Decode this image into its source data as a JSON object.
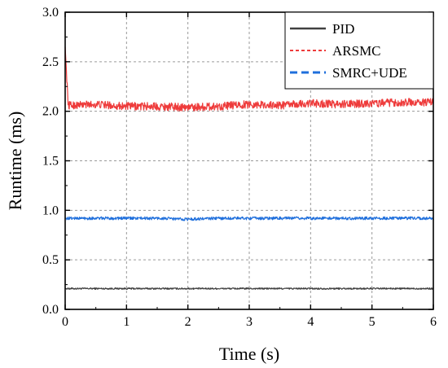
{
  "chart_data": {
    "type": "line",
    "title": "",
    "xlabel": "Time (s)",
    "ylabel": "Runtime (ms)",
    "xlim": [
      0,
      6
    ],
    "ylim": [
      0.0,
      3.0
    ],
    "x_ticks": [
      "0",
      "1",
      "2",
      "3",
      "4",
      "5",
      "6"
    ],
    "y_ticks": [
      "0.0",
      "0.5",
      "1.0",
      "1.5",
      "2.0",
      "2.5",
      "3.0"
    ],
    "grid": true,
    "legend_position": "top-right",
    "series": [
      {
        "name": "PID",
        "color": "#404040",
        "line_style": "solid",
        "x": [
          0,
          0.5,
          1,
          1.5,
          2,
          2.5,
          3,
          3.5,
          4,
          4.5,
          5,
          5.5,
          6
        ],
        "y": [
          0.21,
          0.21,
          0.21,
          0.21,
          0.21,
          0.21,
          0.21,
          0.21,
          0.21,
          0.21,
          0.21,
          0.21,
          0.21
        ]
      },
      {
        "name": "ARSMC",
        "color": "#ee3b3b",
        "line_style": "dashed",
        "x": [
          0,
          0.05,
          0.5,
          1,
          1.5,
          2,
          2.5,
          3,
          3.5,
          4,
          4.5,
          5,
          5.5,
          6
        ],
        "y": [
          2.65,
          2.06,
          2.07,
          2.05,
          2.05,
          2.04,
          2.05,
          2.07,
          2.06,
          2.08,
          2.07,
          2.08,
          2.09,
          2.09
        ]
      },
      {
        "name": "SMRC+UDE",
        "color": "#1f6fdc",
        "line_style": "dashed",
        "x": [
          0,
          0.5,
          1,
          1.5,
          2,
          2.5,
          3,
          3.5,
          4,
          4.5,
          5,
          5.5,
          6
        ],
        "y": [
          0.92,
          0.92,
          0.92,
          0.92,
          0.91,
          0.92,
          0.92,
          0.92,
          0.92,
          0.92,
          0.92,
          0.92,
          0.92
        ]
      }
    ]
  }
}
